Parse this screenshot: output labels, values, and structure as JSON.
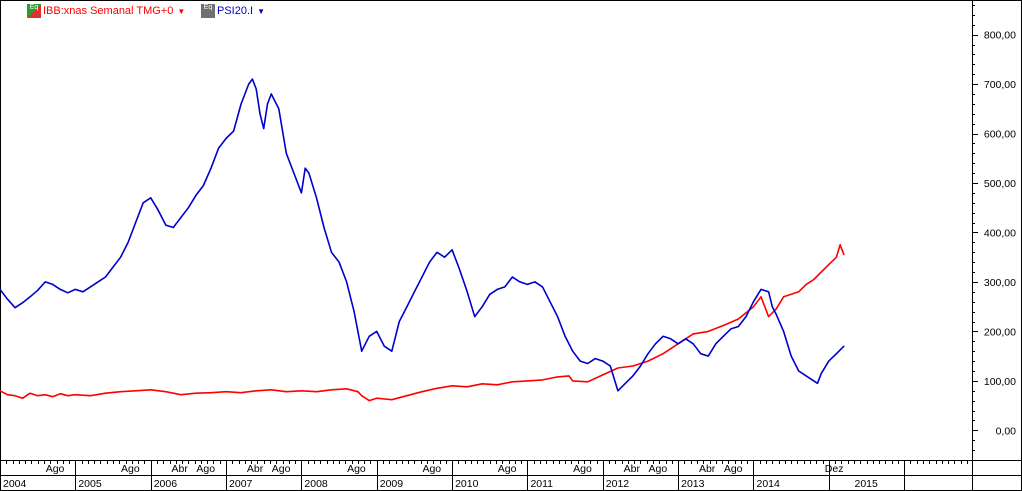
{
  "legend": [
    {
      "label": "IBB:xnas Semanal TMG+0",
      "color": "#ff0000",
      "icon": "stock-series-icon-green"
    },
    {
      "label": "PSI20.I",
      "color": "#0000cc",
      "icon": "stock-series-icon-gray"
    }
  ],
  "chart_data": {
    "type": "line",
    "title": "",
    "xlabel": "",
    "ylabel": "",
    "y_axis_side": "right",
    "ylim": [
      -60,
      870
    ],
    "yticks": [
      {
        "value": 0,
        "label": "0,00"
      },
      {
        "value": 100,
        "label": "100,00"
      },
      {
        "value": 200,
        "label": "200,00"
      },
      {
        "value": 300,
        "label": "300,00"
      },
      {
        "value": 400,
        "label": "400,00"
      },
      {
        "value": 500,
        "label": "500,00"
      },
      {
        "value": 600,
        "label": "600,00"
      },
      {
        "value": 700,
        "label": "700,00"
      },
      {
        "value": 800,
        "label": "800,00"
      }
    ],
    "xlim": [
      2004.0,
      2016.9
    ],
    "month_labels": [
      {
        "x": 2004.58,
        "label": "Ago"
      },
      {
        "x": 2005.58,
        "label": "Ago"
      },
      {
        "x": 2006.25,
        "label": "Abr"
      },
      {
        "x": 2006.58,
        "label": "Ago"
      },
      {
        "x": 2007.25,
        "label": "Abr"
      },
      {
        "x": 2007.58,
        "label": "Ago"
      },
      {
        "x": 2008.58,
        "label": "Ago"
      },
      {
        "x": 2009.58,
        "label": "Ago"
      },
      {
        "x": 2010.58,
        "label": "Ago"
      },
      {
        "x": 2011.58,
        "label": "Ago"
      },
      {
        "x": 2012.25,
        "label": "Abr"
      },
      {
        "x": 2012.58,
        "label": "Ago"
      },
      {
        "x": 2013.25,
        "label": "Abr"
      },
      {
        "x": 2013.58,
        "label": "Ago"
      },
      {
        "x": 2014.92,
        "label": "Dez"
      }
    ],
    "year_labels": [
      {
        "x": 2004.0,
        "label": "2004"
      },
      {
        "x": 2005.0,
        "label": "2005"
      },
      {
        "x": 2006.0,
        "label": "2006"
      },
      {
        "x": 2007.0,
        "label": "2007"
      },
      {
        "x": 2008.0,
        "label": "2008"
      },
      {
        "x": 2009.0,
        "label": "2009"
      },
      {
        "x": 2010.0,
        "label": "2010"
      },
      {
        "x": 2011.0,
        "label": "2011"
      },
      {
        "x": 2012.0,
        "label": "2012"
      },
      {
        "x": 2013.0,
        "label": "2013"
      },
      {
        "x": 2014.0,
        "label": "2014"
      },
      {
        "x": 2015.0,
        "label": "2015"
      }
    ],
    "grid": false,
    "series": [
      {
        "name": "IBB:xnas Semanal TMG+0",
        "color": "#ff0000",
        "points": [
          [
            2004.0,
            80
          ],
          [
            2004.1,
            72
          ],
          [
            2004.2,
            70
          ],
          [
            2004.3,
            65
          ],
          [
            2004.4,
            75
          ],
          [
            2004.5,
            70
          ],
          [
            2004.6,
            72
          ],
          [
            2004.7,
            68
          ],
          [
            2004.8,
            74
          ],
          [
            2004.9,
            70
          ],
          [
            2005.0,
            72
          ],
          [
            2005.2,
            70
          ],
          [
            2005.4,
            75
          ],
          [
            2005.6,
            78
          ],
          [
            2005.8,
            80
          ],
          [
            2006.0,
            82
          ],
          [
            2006.2,
            78
          ],
          [
            2006.4,
            72
          ],
          [
            2006.6,
            75
          ],
          [
            2006.8,
            76
          ],
          [
            2007.0,
            78
          ],
          [
            2007.2,
            76
          ],
          [
            2007.4,
            80
          ],
          [
            2007.6,
            82
          ],
          [
            2007.8,
            78
          ],
          [
            2008.0,
            80
          ],
          [
            2008.2,
            78
          ],
          [
            2008.4,
            82
          ],
          [
            2008.6,
            84
          ],
          [
            2008.75,
            78
          ],
          [
            2008.8,
            70
          ],
          [
            2008.9,
            60
          ],
          [
            2009.0,
            65
          ],
          [
            2009.2,
            62
          ],
          [
            2009.4,
            70
          ],
          [
            2009.6,
            78
          ],
          [
            2009.8,
            85
          ],
          [
            2010.0,
            90
          ],
          [
            2010.2,
            88
          ],
          [
            2010.4,
            94
          ],
          [
            2010.6,
            92
          ],
          [
            2010.8,
            98
          ],
          [
            2011.0,
            100
          ],
          [
            2011.2,
            102
          ],
          [
            2011.4,
            108
          ],
          [
            2011.55,
            110
          ],
          [
            2011.6,
            100
          ],
          [
            2011.8,
            98
          ],
          [
            2012.0,
            112
          ],
          [
            2012.2,
            126
          ],
          [
            2012.4,
            130
          ],
          [
            2012.6,
            140
          ],
          [
            2012.8,
            155
          ],
          [
            2013.0,
            175
          ],
          [
            2013.1,
            185
          ],
          [
            2013.2,
            195
          ],
          [
            2013.4,
            200
          ],
          [
            2013.6,
            212
          ],
          [
            2013.8,
            225
          ],
          [
            2014.0,
            250
          ],
          [
            2014.1,
            270
          ],
          [
            2014.2,
            230
          ],
          [
            2014.3,
            245
          ],
          [
            2014.4,
            270
          ],
          [
            2014.5,
            275
          ],
          [
            2014.6,
            280
          ],
          [
            2014.7,
            295
          ],
          [
            2014.8,
            305
          ],
          [
            2014.9,
            320
          ],
          [
            2015.0,
            335
          ],
          [
            2015.1,
            350
          ],
          [
            2015.15,
            375
          ],
          [
            2015.2,
            355
          ]
        ]
      },
      {
        "name": "PSI20.I",
        "color": "#0000cc",
        "points": [
          [
            2004.0,
            285
          ],
          [
            2004.1,
            265
          ],
          [
            2004.2,
            248
          ],
          [
            2004.3,
            258
          ],
          [
            2004.4,
            270
          ],
          [
            2004.5,
            283
          ],
          [
            2004.6,
            300
          ],
          [
            2004.7,
            295
          ],
          [
            2004.8,
            285
          ],
          [
            2004.9,
            278
          ],
          [
            2005.0,
            285
          ],
          [
            2005.1,
            280
          ],
          [
            2005.2,
            290
          ],
          [
            2005.3,
            300
          ],
          [
            2005.4,
            310
          ],
          [
            2005.5,
            330
          ],
          [
            2005.6,
            350
          ],
          [
            2005.7,
            380
          ],
          [
            2005.8,
            420
          ],
          [
            2005.9,
            460
          ],
          [
            2006.0,
            470
          ],
          [
            2006.1,
            445
          ],
          [
            2006.2,
            415
          ],
          [
            2006.3,
            410
          ],
          [
            2006.4,
            430
          ],
          [
            2006.5,
            450
          ],
          [
            2006.6,
            475
          ],
          [
            2006.7,
            495
          ],
          [
            2006.8,
            530
          ],
          [
            2006.9,
            570
          ],
          [
            2007.0,
            590
          ],
          [
            2007.1,
            605
          ],
          [
            2007.2,
            660
          ],
          [
            2007.3,
            700
          ],
          [
            2007.35,
            710
          ],
          [
            2007.4,
            690
          ],
          [
            2007.45,
            640
          ],
          [
            2007.5,
            610
          ],
          [
            2007.55,
            660
          ],
          [
            2007.6,
            680
          ],
          [
            2007.7,
            650
          ],
          [
            2007.8,
            560
          ],
          [
            2007.9,
            520
          ],
          [
            2008.0,
            480
          ],
          [
            2008.05,
            530
          ],
          [
            2008.1,
            520
          ],
          [
            2008.2,
            470
          ],
          [
            2008.3,
            410
          ],
          [
            2008.4,
            360
          ],
          [
            2008.5,
            340
          ],
          [
            2008.6,
            300
          ],
          [
            2008.7,
            240
          ],
          [
            2008.75,
            200
          ],
          [
            2008.8,
            160
          ],
          [
            2008.9,
            190
          ],
          [
            2009.0,
            200
          ],
          [
            2009.1,
            170
          ],
          [
            2009.2,
            160
          ],
          [
            2009.3,
            220
          ],
          [
            2009.4,
            250
          ],
          [
            2009.5,
            280
          ],
          [
            2009.6,
            310
          ],
          [
            2009.7,
            340
          ],
          [
            2009.8,
            360
          ],
          [
            2009.9,
            350
          ],
          [
            2010.0,
            365
          ],
          [
            2010.1,
            325
          ],
          [
            2010.2,
            280
          ],
          [
            2010.3,
            230
          ],
          [
            2010.4,
            250
          ],
          [
            2010.5,
            275
          ],
          [
            2010.6,
            285
          ],
          [
            2010.7,
            290
          ],
          [
            2010.8,
            310
          ],
          [
            2010.9,
            300
          ],
          [
            2011.0,
            295
          ],
          [
            2011.1,
            300
          ],
          [
            2011.2,
            290
          ],
          [
            2011.3,
            260
          ],
          [
            2011.4,
            230
          ],
          [
            2011.5,
            190
          ],
          [
            2011.6,
            160
          ],
          [
            2011.7,
            140
          ],
          [
            2011.8,
            135
          ],
          [
            2011.9,
            145
          ],
          [
            2012.0,
            140
          ],
          [
            2012.1,
            130
          ],
          [
            2012.2,
            80
          ],
          [
            2012.3,
            95
          ],
          [
            2012.4,
            110
          ],
          [
            2012.5,
            130
          ],
          [
            2012.6,
            155
          ],
          [
            2012.7,
            175
          ],
          [
            2012.8,
            190
          ],
          [
            2012.9,
            185
          ],
          [
            2013.0,
            175
          ],
          [
            2013.1,
            185
          ],
          [
            2013.2,
            175
          ],
          [
            2013.3,
            155
          ],
          [
            2013.4,
            150
          ],
          [
            2013.5,
            175
          ],
          [
            2013.6,
            190
          ],
          [
            2013.7,
            205
          ],
          [
            2013.8,
            210
          ],
          [
            2013.9,
            230
          ],
          [
            2014.0,
            260
          ],
          [
            2014.1,
            285
          ],
          [
            2014.2,
            280
          ],
          [
            2014.25,
            250
          ],
          [
            2014.3,
            235
          ],
          [
            2014.4,
            200
          ],
          [
            2014.5,
            150
          ],
          [
            2014.6,
            120
          ],
          [
            2014.7,
            110
          ],
          [
            2014.8,
            100
          ],
          [
            2014.85,
            95
          ],
          [
            2014.9,
            115
          ],
          [
            2015.0,
            140
          ],
          [
            2015.1,
            155
          ],
          [
            2015.2,
            170
          ]
        ]
      }
    ]
  }
}
